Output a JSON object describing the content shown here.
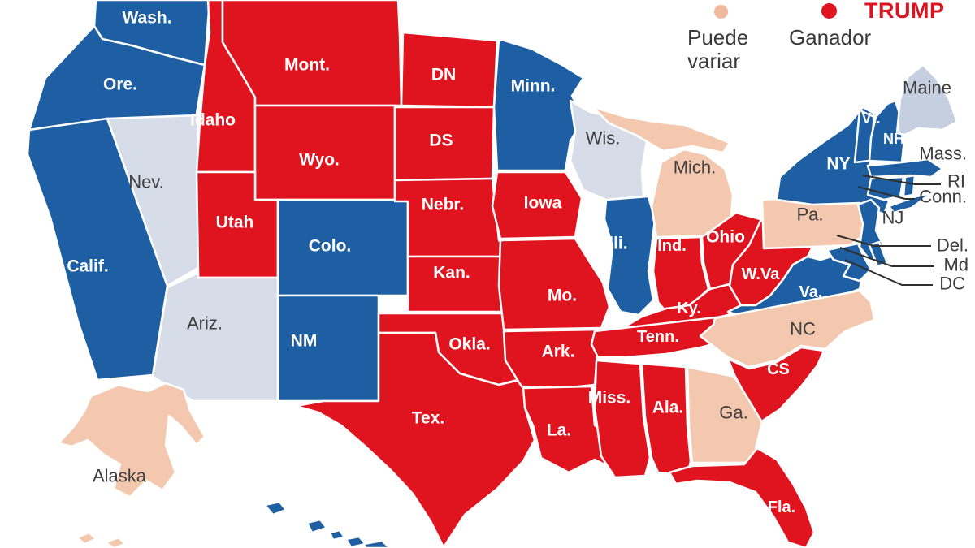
{
  "legend": {
    "lean": {
      "label": "Puede variar",
      "dot_color": "#f0b89c"
    },
    "winner": {
      "label": "Ganador",
      "dot_color": "#e0141e"
    },
    "candidate": {
      "name": "TRUMP",
      "color": "#dc1420"
    }
  },
  "colors": {
    "winner_rep": "#e0141e",
    "winner_dem": "#1e5fa3",
    "lean_rep": "#f4c8ae",
    "lean_dem": "#d6dde8",
    "lean_dem_maine": "#c5cfe0",
    "state_border": "#ffffff",
    "label_light": "#ffffff",
    "label_dark": "#3f3e3e",
    "leader_line": "#2f2f2f"
  },
  "states": [
    {
      "id": "wash",
      "label": "Wash.",
      "category": "winner_dem",
      "label_style": "light"
    },
    {
      "id": "ore",
      "label": "Ore.",
      "category": "winner_dem",
      "label_style": "light"
    },
    {
      "id": "calif",
      "label": "Calif.",
      "category": "winner_dem",
      "label_style": "light"
    },
    {
      "id": "nev",
      "label": "Nev.",
      "category": "lean_dem",
      "label_style": "dark"
    },
    {
      "id": "idaho",
      "label": "Idaho",
      "category": "winner_rep",
      "label_style": "light"
    },
    {
      "id": "mont",
      "label": "Mont.",
      "category": "winner_rep",
      "label_style": "light"
    },
    {
      "id": "wyo",
      "label": "Wyo.",
      "category": "winner_rep",
      "label_style": "light"
    },
    {
      "id": "utah",
      "label": "Utah",
      "category": "winner_rep",
      "label_style": "light"
    },
    {
      "id": "ariz",
      "label": "Ariz.",
      "category": "lean_dem",
      "label_style": "dark"
    },
    {
      "id": "colo",
      "label": "Colo.",
      "category": "winner_dem",
      "label_style": "light"
    },
    {
      "id": "nm",
      "label": "NM",
      "category": "winner_dem",
      "label_style": "light"
    },
    {
      "id": "nd",
      "label": "DN",
      "category": "winner_rep",
      "label_style": "light"
    },
    {
      "id": "sd",
      "label": "DS",
      "category": "winner_rep",
      "label_style": "light"
    },
    {
      "id": "nebr",
      "label": "Nebr.",
      "category": "winner_rep",
      "label_style": "light"
    },
    {
      "id": "kan",
      "label": "Kan.",
      "category": "winner_rep",
      "label_style": "light"
    },
    {
      "id": "okla",
      "label": "Okla.",
      "category": "winner_rep",
      "label_style": "light"
    },
    {
      "id": "tex",
      "label": "Tex.",
      "category": "winner_rep",
      "label_style": "light"
    },
    {
      "id": "minn",
      "label": "Minn.",
      "category": "winner_dem",
      "label_style": "light"
    },
    {
      "id": "iowa",
      "label": "Iowa",
      "category": "winner_rep",
      "label_style": "light"
    },
    {
      "id": "mo",
      "label": "Mo.",
      "category": "winner_rep",
      "label_style": "light"
    },
    {
      "id": "ark",
      "label": "Ark.",
      "category": "winner_rep",
      "label_style": "light"
    },
    {
      "id": "la",
      "label": "La.",
      "category": "winner_rep",
      "label_style": "light"
    },
    {
      "id": "wis",
      "label": "Wis.",
      "category": "lean_dem",
      "label_style": "dark"
    },
    {
      "id": "ill",
      "label": "Illi.",
      "category": "winner_dem",
      "label_style": "light"
    },
    {
      "id": "mich",
      "label": "Mich.",
      "category": "lean_rep",
      "label_style": "dark"
    },
    {
      "id": "ind",
      "label": "Ind.",
      "category": "winner_rep",
      "label_style": "light"
    },
    {
      "id": "ohio",
      "label": "Ohio",
      "category": "winner_rep",
      "label_style": "light"
    },
    {
      "id": "ky",
      "label": "Ky.",
      "category": "winner_rep",
      "label_style": "light"
    },
    {
      "id": "wva",
      "label": "W.Va",
      "category": "winner_rep",
      "label_style": "light"
    },
    {
      "id": "va",
      "label": "Va.",
      "category": "winner_dem",
      "label_style": "light"
    },
    {
      "id": "tenn",
      "label": "Tenn.",
      "category": "winner_rep",
      "label_style": "light"
    },
    {
      "id": "nc",
      "label": "NC",
      "category": "lean_rep",
      "label_style": "dark"
    },
    {
      "id": "sc",
      "label": "CS",
      "category": "winner_rep",
      "label_style": "light"
    },
    {
      "id": "ga",
      "label": "Ga.",
      "category": "lean_rep",
      "label_style": "dark"
    },
    {
      "id": "ala",
      "label": "Ala.",
      "category": "winner_rep",
      "label_style": "light"
    },
    {
      "id": "miss",
      "label": "Miss.",
      "category": "winner_rep",
      "label_style": "light"
    },
    {
      "id": "fla",
      "label": "Fla.",
      "category": "winner_rep",
      "label_style": "light"
    },
    {
      "id": "pa",
      "label": "Pa.",
      "category": "lean_rep",
      "label_style": "dark"
    },
    {
      "id": "ny",
      "label": "NY",
      "category": "winner_dem",
      "label_style": "light"
    },
    {
      "id": "nj_state",
      "label": "",
      "category": "winner_dem",
      "label_style": "none"
    },
    {
      "id": "vt",
      "label": "Vt.",
      "category": "winner_dem",
      "label_style": "light"
    },
    {
      "id": "nh",
      "label": "NH",
      "category": "winner_dem",
      "label_style": "light"
    },
    {
      "id": "maine",
      "label": "Maine",
      "category": "lean_dem_maine",
      "label_style": "dark"
    },
    {
      "id": "mass_state",
      "label": "",
      "category": "winner_dem",
      "label_style": "none"
    },
    {
      "id": "ct_state",
      "label": "",
      "category": "winner_dem",
      "label_style": "none"
    },
    {
      "id": "ri_state",
      "label": "",
      "category": "winner_dem",
      "label_style": "none"
    },
    {
      "id": "de_state",
      "label": "",
      "category": "winner_dem",
      "label_style": "none"
    },
    {
      "id": "md_state",
      "label": "",
      "category": "winner_dem",
      "label_style": "none"
    },
    {
      "id": "alaska",
      "label": "Alaska",
      "category": "lean_rep",
      "label_style": "dark"
    },
    {
      "id": "hawaii",
      "label": "",
      "category": "winner_dem",
      "label_style": "none"
    }
  ],
  "callouts": [
    {
      "id": "mass",
      "label": "Mass."
    },
    {
      "id": "nj",
      "label": "NJ"
    },
    {
      "id": "ri",
      "label": "RI"
    },
    {
      "id": "conn",
      "label": "Conn."
    },
    {
      "id": "del",
      "label": "Del."
    },
    {
      "id": "md",
      "label": "Md"
    },
    {
      "id": "dc",
      "label": "DC"
    }
  ]
}
